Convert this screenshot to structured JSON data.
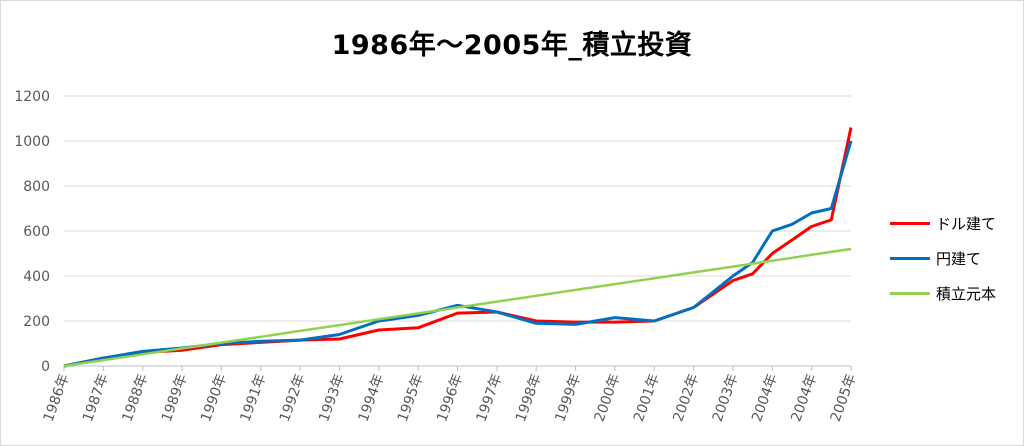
{
  "chart_data": {
    "type": "line",
    "title": "1986年～2005年_積立投資",
    "xlabel": "",
    "ylabel": "",
    "ylim": [
      0,
      1200
    ],
    "yticks": [
      0,
      200,
      400,
      600,
      800,
      1000,
      1200
    ],
    "x_categories": [
      "1986年",
      "1987年",
      "1988年",
      "1989年",
      "1990年",
      "1991年",
      "1992年",
      "1993年",
      "1994年",
      "1995年",
      "1996年",
      "1997年",
      "1998年",
      "1999年",
      "2000年",
      "2001年",
      "2002年",
      "2003年",
      "2004年",
      "2004年",
      "2005年"
    ],
    "grid": "horizontal",
    "legend_position": "right",
    "x_points": [
      0,
      1,
      2,
      3,
      4,
      5,
      6,
      7,
      8,
      9,
      10,
      11,
      12,
      13,
      14,
      15,
      16,
      17,
      17.5,
      18,
      18.5,
      19,
      19.5,
      20
    ],
    "series": [
      {
        "name": "ドル建て",
        "color": "#ff0000",
        "values": [
          0,
          35,
          60,
          70,
          95,
          105,
          115,
          120,
          160,
          170,
          235,
          240,
          200,
          195,
          195,
          200,
          260,
          380,
          410,
          500,
          560,
          620,
          650,
          1060
        ]
      },
      {
        "name": "円建て",
        "color": "#0070c0",
        "values": [
          0,
          35,
          65,
          80,
          100,
          110,
          115,
          140,
          200,
          225,
          270,
          240,
          190,
          185,
          215,
          200,
          260,
          400,
          460,
          600,
          630,
          680,
          700,
          1000
        ]
      },
      {
        "name": "積立元本",
        "color": "#92d050",
        "values": [
          0,
          26,
          52,
          78,
          104,
          130,
          156,
          182,
          208,
          234,
          260,
          286,
          312,
          338,
          364,
          390,
          416,
          442,
          455,
          468,
          481,
          494,
          507,
          520
        ]
      }
    ]
  }
}
